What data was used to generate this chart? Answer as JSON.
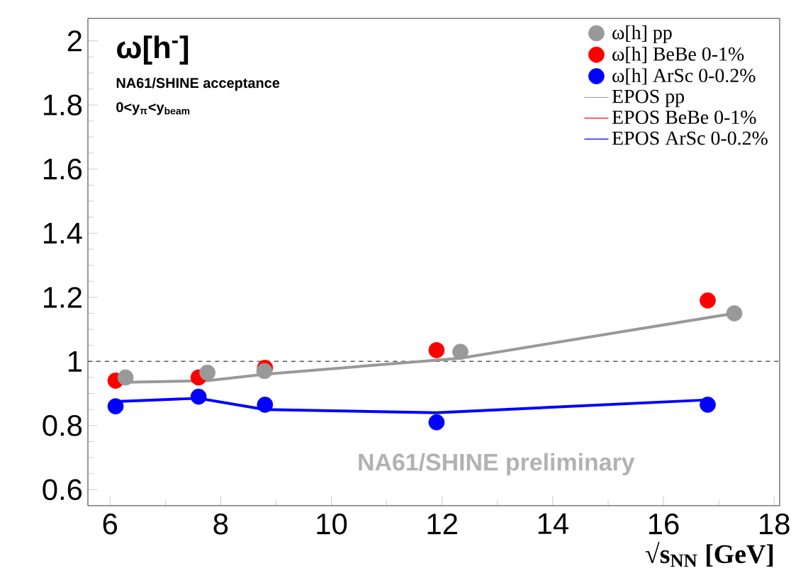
{
  "chart_data": {
    "type": "scatter",
    "title": "ω[h$^{-}$]",
    "xlabel": "√s$_{NN}$ [GeV]",
    "annotations": [
      "NA61/SHINE acceptance",
      "0<y$_{π}$<y$_{beam}$",
      "NA61/SHINE preliminary"
    ],
    "xlim": [
      5.6,
      18.1
    ],
    "ylim": [
      0.55,
      2.07
    ],
    "xticks": [
      6,
      8,
      10,
      12,
      14,
      16,
      18
    ],
    "yticks": [
      0.6,
      0.8,
      1,
      1.2,
      1.4,
      1.6,
      1.8,
      2
    ],
    "legend": "top right",
    "grid": false,
    "ref_lines": [
      {
        "axis": "y",
        "value": 1,
        "color": "#555555",
        "line_style": "dashed"
      }
    ],
    "series": [
      {
        "name": "ω[h] pp",
        "marker": "circle",
        "color": "#999999",
        "x": [
          6.28,
          7.76,
          8.79,
          12.33,
          17.28
        ],
        "values": [
          0.95,
          0.965,
          0.97,
          1.03,
          1.15
        ]
      },
      {
        "name": "ω[h] BeBe 0-1%",
        "marker": "circle",
        "color": "#ff0000",
        "x": [
          6.1,
          7.6,
          8.8,
          11.9,
          16.8
        ],
        "values": [
          0.94,
          0.95,
          0.98,
          1.035,
          1.19
        ]
      },
      {
        "name": "ω[h] ArSc 0-0.2%",
        "marker": "circle",
        "color": "#0000ff",
        "x": [
          6.1,
          7.6,
          8.8,
          11.9,
          16.8
        ],
        "values": [
          0.86,
          0.89,
          0.865,
          0.81,
          0.865
        ]
      },
      {
        "name": "EPOS pp",
        "type": "line",
        "marker": "none",
        "color": "#999999",
        "x": [
          6.28,
          7.76,
          8.79,
          12.33,
          17.28
        ],
        "values": [
          0.935,
          0.94,
          0.96,
          1.01,
          1.15
        ]
      },
      {
        "name": "EPOS BeBe 0-1%",
        "type": "line",
        "marker": "none",
        "color": "#ff0000",
        "values": [
          null,
          null,
          null,
          null,
          null
        ]
      },
      {
        "name": "EPOS ArSc 0-0.2%",
        "type": "line",
        "marker": "none",
        "color": "#0000ff",
        "x": [
          6.1,
          7.6,
          8.8,
          11.9,
          16.8
        ],
        "values": [
          0.875,
          0.885,
          0.85,
          0.84,
          0.88
        ]
      }
    ]
  }
}
